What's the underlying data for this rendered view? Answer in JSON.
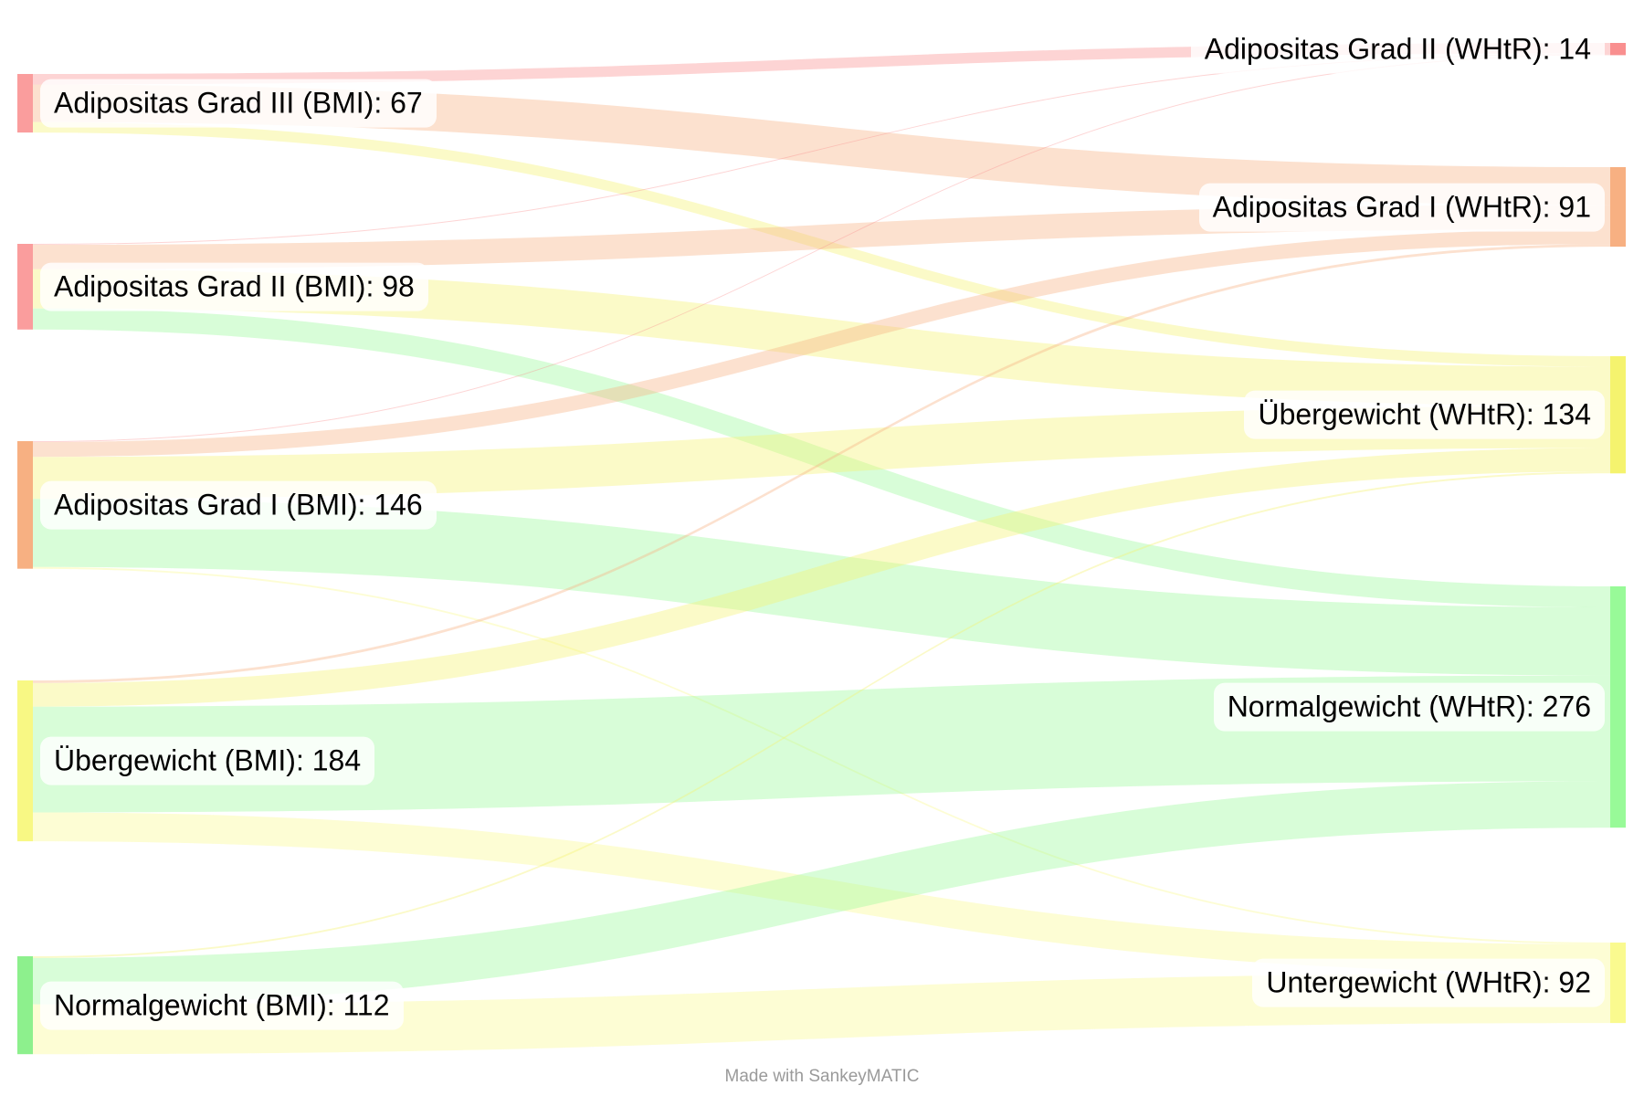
{
  "chart_data": {
    "type": "sankey",
    "tool": "SankeyMATIC",
    "footer_credit": "Made with SankeyMATIC",
    "flow_color_mode": "target",
    "flow_opacity": 0.38,
    "background_color": "#ffffff",
    "label_text_color": "#000000",
    "credit_text_color": "#9a9a9a",
    "nodes": [
      {
        "id": "bmi3",
        "column": "left",
        "label": "Adipositas Grad III (BMI)",
        "value": 67,
        "color": "#FA9D9D"
      },
      {
        "id": "bmi2",
        "column": "left",
        "label": "Adipositas Grad II (BMI)",
        "value": 98,
        "color": "#FA9D9D"
      },
      {
        "id": "bmi1",
        "column": "left",
        "label": "Adipositas Grad I (BMI)",
        "value": 146,
        "color": "#F7B082"
      },
      {
        "id": "bmiow",
        "column": "left",
        "label": "Übergewicht (BMI)",
        "value": 184,
        "color": "#F8F884"
      },
      {
        "id": "bminw",
        "column": "left",
        "label": "Normalgewicht (BMI)",
        "value": 112,
        "color": "#8DF08D"
      },
      {
        "id": "whtr2",
        "column": "right",
        "label": "Adipositas Grad II (WHtR)",
        "value": 14,
        "color": "#F98F8F"
      },
      {
        "id": "whtr1",
        "column": "right",
        "label": "Adipositas Grad I (WHtR)",
        "value": 91,
        "color": "#F7B082"
      },
      {
        "id": "whtrow",
        "column": "right",
        "label": "Übergewicht (WHtR)",
        "value": 134,
        "color": "#F5F36E"
      },
      {
        "id": "whtrnw",
        "column": "right",
        "label": "Normalgewicht (WHtR)",
        "value": 276,
        "color": "#98FA98"
      },
      {
        "id": "whtruw",
        "column": "right",
        "label": "Untergewicht (WHtR)",
        "value": 92,
        "color": "#FAFA8F"
      }
    ],
    "links": [
      {
        "source": "bmi3",
        "target": "whtr2",
        "value": 12
      },
      {
        "source": "bmi3",
        "target": "whtr1",
        "value": 43
      },
      {
        "source": "bmi3",
        "target": "whtrow",
        "value": 12
      },
      {
        "source": "bmi2",
        "target": "whtr2",
        "value": 1
      },
      {
        "source": "bmi2",
        "target": "whtr1",
        "value": 28
      },
      {
        "source": "bmi2",
        "target": "whtrow",
        "value": 45
      },
      {
        "source": "bmi2",
        "target": "whtrnw",
        "value": 24
      },
      {
        "source": "bmi1",
        "target": "whtr2",
        "value": 1
      },
      {
        "source": "bmi1",
        "target": "whtr1",
        "value": 17
      },
      {
        "source": "bmi1",
        "target": "whtrow",
        "value": 48
      },
      {
        "source": "bmi1",
        "target": "whtrnw",
        "value": 78
      },
      {
        "source": "bmi1",
        "target": "whtruw",
        "value": 2
      },
      {
        "source": "bmiow",
        "target": "whtr1",
        "value": 3
      },
      {
        "source": "bmiow",
        "target": "whtrow",
        "value": 27
      },
      {
        "source": "bmiow",
        "target": "whtrnw",
        "value": 121
      },
      {
        "source": "bmiow",
        "target": "whtruw",
        "value": 33
      },
      {
        "source": "bminw",
        "target": "whtrow",
        "value": 2
      },
      {
        "source": "bminw",
        "target": "whtrnw",
        "value": 53
      },
      {
        "source": "bminw",
        "target": "whtruw",
        "value": 57
      }
    ]
  }
}
